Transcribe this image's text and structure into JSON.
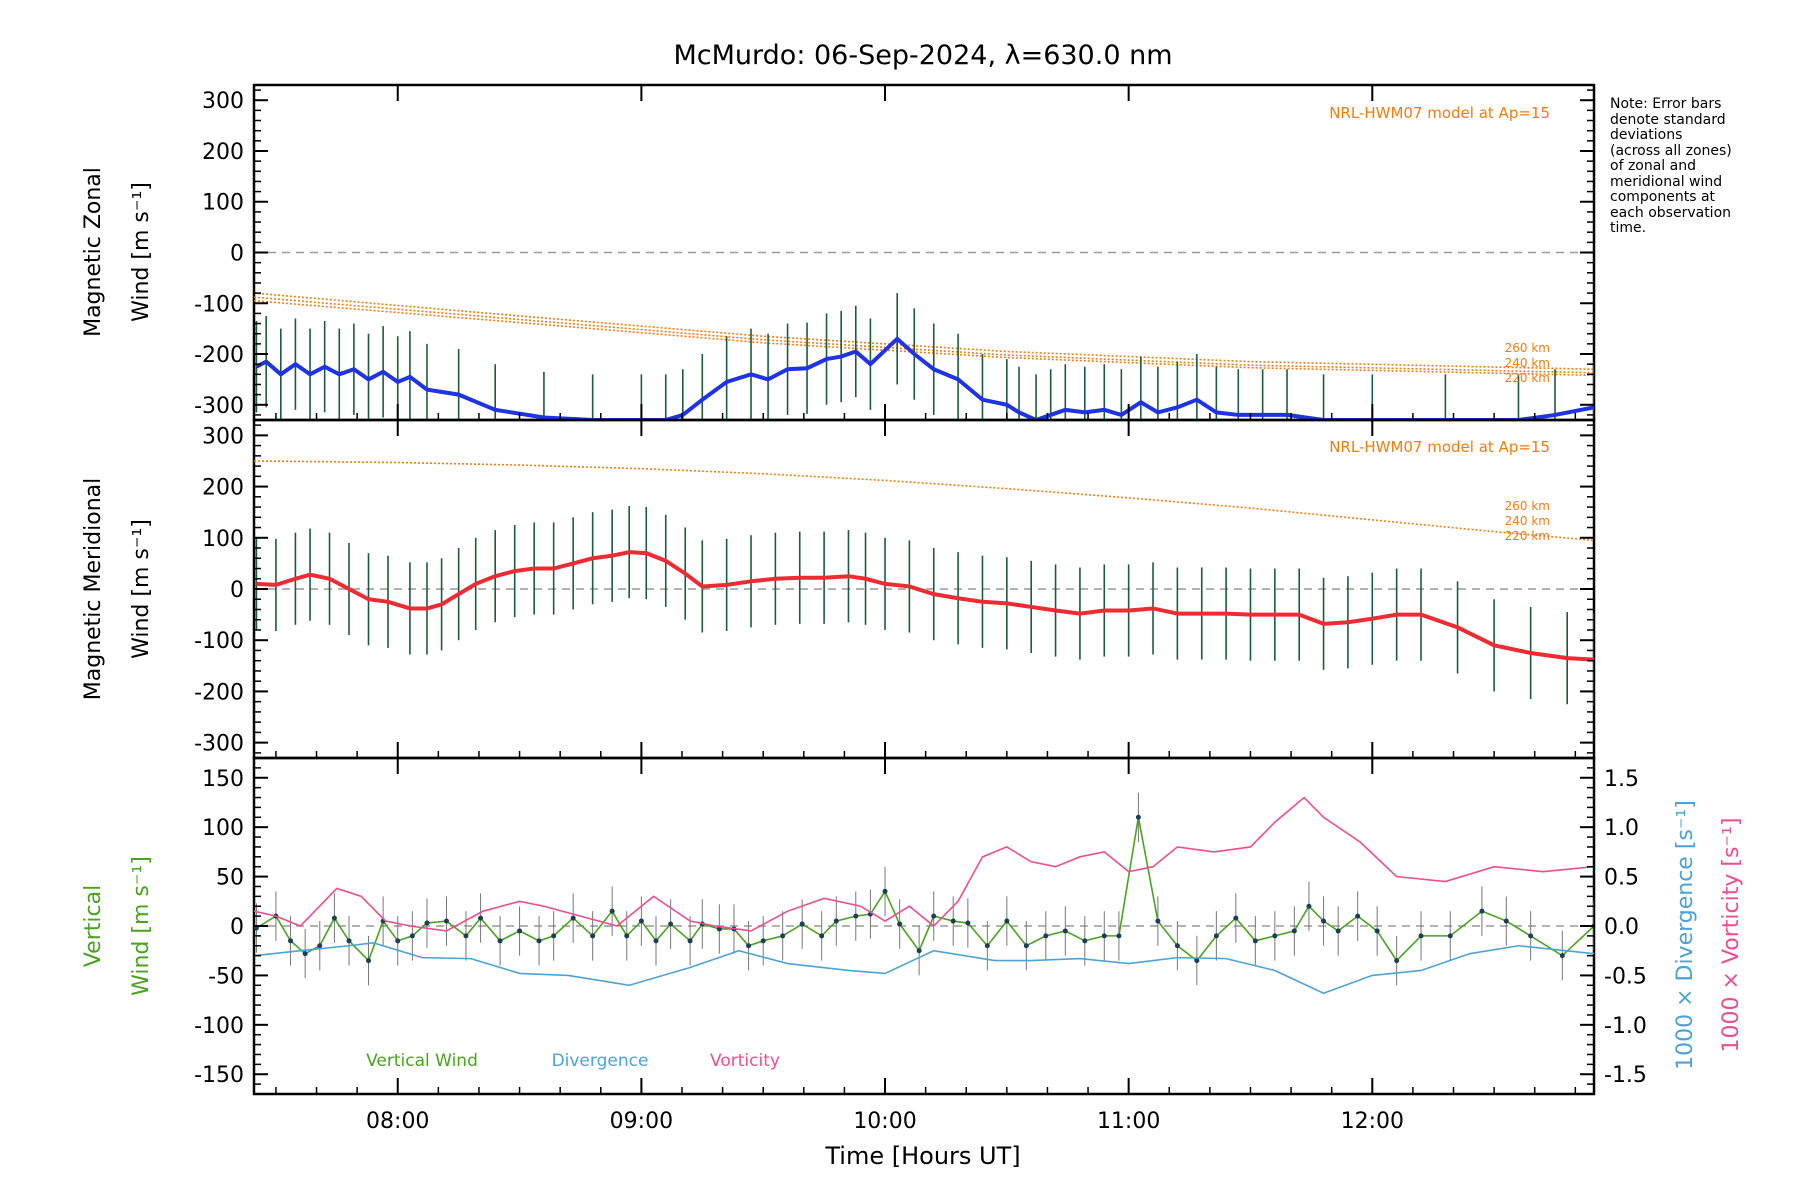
{
  "chart_data": {
    "title": "McMurdo: 06-Sep-2024, λ=630.0 nm",
    "xlabel": "Time [Hours UT]",
    "x_unit": "hours UT",
    "xlim": [
      7.41,
      12.91
    ],
    "xticks": [
      {
        "value": 8,
        "label": "08:00"
      },
      {
        "value": 9,
        "label": "09:00"
      },
      {
        "value": 10,
        "label": "10:00"
      },
      {
        "value": 11,
        "label": "11:00"
      },
      {
        "value": 12,
        "label": "12:00"
      }
    ],
    "note": [
      "Note: Error bars",
      "denote standard",
      "deviations",
      "(across all zones)",
      "of zonal and",
      "meridional wind",
      "components at",
      "each observation",
      "time."
    ],
    "colors": {
      "zonal": "#1f33e6",
      "meridional": "#ee2b33",
      "model": "#f07d10",
      "vertical": "#4aa31d",
      "divergence": "#4da3d6",
      "vorticity": "#ee4d8f",
      "zero": "#999999"
    },
    "panels": [
      {
        "type": "line",
        "ylabel": [
          "Magnetic Zonal",
          "Wind [m s⁻¹]"
        ],
        "ylim": [
          -330,
          330
        ],
        "yticks": [
          300,
          200,
          100,
          0,
          -100,
          -200,
          -300
        ],
        "model_label": "NRL-HWM07 model at Ap=15",
        "model_altitudes": [
          "260 km",
          "240 km",
          "220 km"
        ],
        "model_series": [
          {
            "name": "260 km",
            "x": [
              7.41,
              8.5,
              9.5,
              10.5,
              11.5,
              12.91
            ],
            "y": [
              -80,
              -125,
              -165,
              -195,
              -215,
              -230
            ]
          },
          {
            "name": "240 km",
            "x": [
              7.41,
              8.5,
              9.5,
              10.5,
              11.5,
              12.91
            ],
            "y": [
              -88,
              -132,
              -172,
              -202,
              -222,
              -237
            ]
          },
          {
            "name": "220 km",
            "x": [
              7.41,
              8.5,
              9.5,
              10.5,
              11.5,
              12.91
            ],
            "y": [
              -95,
              -138,
              -178,
              -207,
              -227,
              -242
            ]
          }
        ],
        "series": [
          {
            "x": [
              7.42,
              7.46,
              7.52,
              7.58,
              7.64,
              7.7,
              7.76,
              7.82,
              7.88,
              7.94,
              8.0,
              8.05,
              8.12,
              8.25,
              8.4,
              8.6,
              8.8,
              9.0,
              9.1,
              9.17,
              9.25,
              9.35,
              9.45,
              9.52,
              9.6,
              9.68,
              9.76,
              9.82,
              9.88,
              9.94,
              10.05,
              10.12,
              10.2,
              10.3,
              10.4,
              10.5,
              10.55,
              10.62,
              10.68,
              10.74,
              10.82,
              10.9,
              10.97,
              11.05,
              11.12,
              11.2,
              11.28,
              11.36,
              11.45,
              11.55,
              11.65,
              11.8,
              12.0,
              12.3,
              12.6,
              12.75,
              12.91
            ],
            "y": [
              -225,
              -215,
              -240,
              -220,
              -240,
              -225,
              -240,
              -230,
              -250,
              -235,
              -255,
              -245,
              -270,
              -280,
              -310,
              -325,
              -330,
              -330,
              -330,
              -320,
              -290,
              -255,
              -240,
              -250,
              -230,
              -228,
              -210,
              -205,
              -195,
              -220,
              -170,
              -200,
              -230,
              -250,
              -290,
              -300,
              -315,
              -330,
              -320,
              -310,
              -315,
              -310,
              -320,
              -295,
              -315,
              -305,
              -290,
              -315,
              -320,
              -320,
              -320,
              -330,
              -330,
              -330,
              -330,
              -320,
              -305
            ]
          }
        ]
      },
      {
        "type": "line",
        "ylabel": [
          "Magnetic Meridional",
          "Wind [m s⁻¹]"
        ],
        "ylim": [
          -330,
          330
        ],
        "yticks": [
          300,
          200,
          100,
          0,
          -100,
          -200,
          -300
        ],
        "model_label": "NRL-HWM07 model at Ap=15",
        "model_altitudes": [
          "260 km",
          "240 km",
          "220 km"
        ],
        "model_series": [
          {
            "name": "model",
            "x": [
              7.41,
              8.0,
              8.5,
              9.0,
              9.5,
              10.0,
              10.5,
              11.0,
              11.5,
              12.0,
              12.5,
              12.91
            ],
            "y": [
              250,
              247,
              242,
              235,
              225,
              212,
              196,
              178,
              158,
              135,
              112,
              95
            ]
          }
        ],
        "series": [
          {
            "x": [
              7.42,
              7.5,
              7.58,
              7.64,
              7.72,
              7.8,
              7.88,
              7.96,
              8.05,
              8.12,
              8.18,
              8.25,
              8.32,
              8.4,
              8.48,
              8.56,
              8.64,
              8.72,
              8.8,
              8.88,
              8.95,
              9.02,
              9.1,
              9.18,
              9.25,
              9.35,
              9.45,
              9.55,
              9.65,
              9.75,
              9.85,
              9.92,
              10.0,
              10.1,
              10.2,
              10.3,
              10.4,
              10.5,
              10.6,
              10.7,
              10.8,
              10.9,
              11.0,
              11.1,
              11.2,
              11.3,
              11.4,
              11.5,
              11.6,
              11.7,
              11.8,
              11.9,
              12.0,
              12.1,
              12.2,
              12.35,
              12.5,
              12.65,
              12.8,
              12.91
            ],
            "y": [
              10,
              8,
              20,
              28,
              20,
              0,
              -20,
              -25,
              -38,
              -38,
              -30,
              -10,
              10,
              25,
              35,
              40,
              40,
              50,
              60,
              65,
              72,
              70,
              55,
              30,
              5,
              8,
              15,
              20,
              22,
              22,
              25,
              20,
              10,
              5,
              -10,
              -18,
              -25,
              -28,
              -35,
              -42,
              -48,
              -42,
              -42,
              -38,
              -48,
              -48,
              -48,
              -50,
              -50,
              -50,
              -68,
              -65,
              -58,
              -50,
              -50,
              -75,
              -110,
              -125,
              -135,
              -138
            ]
          }
        ]
      },
      {
        "type": "line",
        "ylabel": [
          "Vertical",
          "Wind [m s⁻¹]"
        ],
        "ylim": [
          -170,
          170
        ],
        "yticks": [
          150,
          100,
          50,
          0,
          -50,
          -100,
          -150
        ],
        "y2ticks": [
          "1.5",
          "1.0",
          "0.5",
          "0.0",
          "-0.5",
          "-1.0",
          "-1.5"
        ],
        "y2label_divergence": "1000 × Divergence [s⁻¹]",
        "y2label_vorticity": "1000 × Vorticity [s⁻¹]",
        "legend": [
          "Vertical Wind",
          "Divergence",
          "Vorticity"
        ],
        "series": [
          {
            "name": "Vertical Wind",
            "x": [
              7.42,
              7.5,
              7.56,
              7.62,
              7.68,
              7.74,
              7.8,
              7.88,
              7.94,
              8.0,
              8.06,
              8.12,
              8.2,
              8.28,
              8.34,
              8.42,
              8.5,
              8.58,
              8.64,
              8.72,
              8.8,
              8.88,
              8.94,
              9.0,
              9.06,
              9.12,
              9.2,
              9.25,
              9.32,
              9.38,
              9.44,
              9.5,
              9.58,
              9.66,
              9.74,
              9.8,
              9.88,
              9.94,
              10.0,
              10.06,
              10.14,
              10.2,
              10.28,
              10.34,
              10.42,
              10.5,
              10.58,
              10.66,
              10.74,
              10.82,
              10.9,
              10.96,
              11.04,
              11.12,
              11.2,
              11.28,
              11.36,
              11.44,
              11.52,
              11.6,
              11.68,
              11.74,
              11.8,
              11.86,
              11.94,
              12.02,
              12.1,
              12.2,
              12.32,
              12.45,
              12.55,
              12.65,
              12.78,
              12.91
            ],
            "y": [
              -2,
              10,
              -15,
              -28,
              -20,
              8,
              -15,
              -35,
              5,
              -15,
              -10,
              3,
              5,
              -10,
              8,
              -15,
              -5,
              -15,
              -10,
              8,
              -10,
              15,
              -10,
              5,
              -15,
              2,
              -15,
              2,
              -3,
              -3,
              -20,
              -15,
              -10,
              2,
              -10,
              5,
              10,
              12,
              35,
              2,
              -25,
              10,
              5,
              3,
              -20,
              5,
              -20,
              -10,
              -5,
              -15,
              -10,
              -10,
              110,
              5,
              -20,
              -35,
              -10,
              8,
              -15,
              -10,
              -5,
              20,
              5,
              -5,
              10,
              -5,
              -35,
              -10,
              -10,
              15,
              5,
              -10,
              -30,
              0
            ]
          },
          {
            "name": "Divergence",
            "x": [
              7.41,
              7.6,
              7.8,
              7.9,
              8.1,
              8.3,
              8.5,
              8.7,
              8.95,
              9.2,
              9.4,
              9.6,
              9.85,
              10.0,
              10.2,
              10.45,
              10.6,
              10.8,
              11.0,
              11.2,
              11.4,
              11.6,
              11.8,
              12.0,
              12.2,
              12.4,
              12.6,
              12.91
            ],
            "y": [
              -30,
              -25,
              -20,
              -17,
              -32,
              -33,
              -48,
              -50,
              -60,
              -42,
              -25,
              -38,
              -45,
              -48,
              -25,
              -35,
              -35,
              -33,
              -38,
              -32,
              -33,
              -45,
              -68,
              -50,
              -45,
              -28,
              -20,
              -28
            ]
          },
          {
            "name": "Vorticity",
            "x": [
              7.41,
              7.5,
              7.6,
              7.75,
              7.85,
              7.95,
              8.05,
              8.2,
              8.35,
              8.5,
              8.6,
              8.75,
              8.9,
              9.05,
              9.2,
              9.3,
              9.45,
              9.6,
              9.75,
              9.9,
              10.0,
              10.1,
              10.2,
              10.3,
              10.4,
              10.5,
              10.6,
              10.7,
              10.8,
              10.9,
              11.0,
              11.1,
              11.2,
              11.35,
              11.5,
              11.6,
              11.72,
              11.8,
              11.95,
              12.1,
              12.3,
              12.5,
              12.7,
              12.91
            ],
            "y": [
              15,
              10,
              0,
              38,
              30,
              5,
              0,
              -5,
              15,
              25,
              20,
              10,
              0,
              30,
              5,
              0,
              -5,
              15,
              28,
              20,
              5,
              20,
              0,
              25,
              70,
              80,
              65,
              60,
              70,
              75,
              55,
              60,
              80,
              75,
              80,
              105,
              130,
              110,
              85,
              50,
              45,
              60,
              55,
              60
            ]
          }
        ]
      }
    ]
  }
}
